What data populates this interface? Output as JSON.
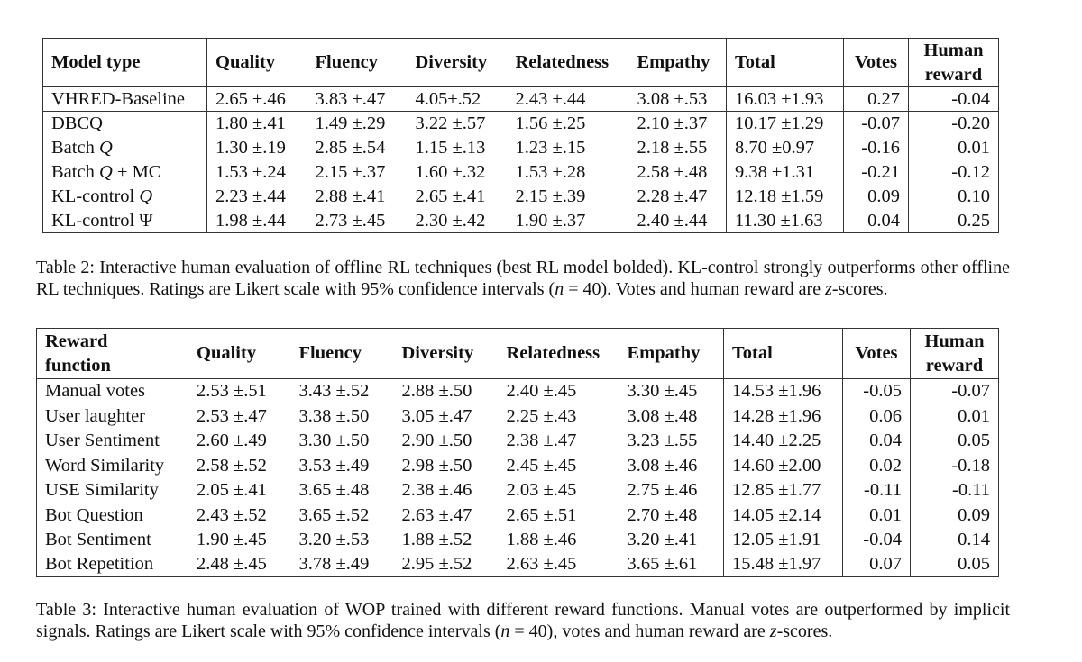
{
  "table2": {
    "headers": [
      "Model type",
      "Quality",
      "Fluency",
      "Diversity",
      "Relatedness",
      "Empathy",
      "Total",
      "Votes",
      "Human reward"
    ],
    "human_reward_lines": [
      "Human",
      "reward"
    ],
    "rows": [
      {
        "model": "VHRED-Baseline",
        "cells": [
          "2.65 ±.46",
          "3.83 ±.47",
          "4.05±.52",
          "2.43 ±.44",
          "3.08 ±.53",
          "16.03 ±1.93",
          "0.27",
          "-0.04"
        ]
      },
      {
        "model": "DBCQ",
        "cells": [
          "1.80 ±.41",
          "1.49 ±.29",
          "3.22 ±.57",
          "1.56 ±.25",
          "2.10 ±.37",
          "10.17 ±1.29",
          "-0.07",
          "-0.20"
        ]
      },
      {
        "model": "Batch Q",
        "cells": [
          "1.30 ±.19",
          "2.85 ±.54",
          "1.15 ±.13",
          "1.23 ±.15",
          "2.18 ±.55",
          "8.70 ±0.97",
          "-0.16",
          "0.01"
        ]
      },
      {
        "model": "Batch Q + MC",
        "cells": [
          "1.53 ±.24",
          "2.15 ±.37",
          "1.60 ±.32",
          "1.53 ±.28",
          "2.58 ±.48",
          "9.38 ±1.31",
          "-0.21",
          "-0.12"
        ]
      },
      {
        "model": "KL-control Q",
        "cells": [
          "2.23 ±.44",
          "2.88 ±.41",
          "2.65 ±.41",
          "2.15 ±.39",
          "2.28 ±.47",
          "12.18 ±1.59",
          "0.09",
          "0.10"
        ]
      },
      {
        "model": "KL-control Ψ",
        "cells": [
          "1.98 ±.44",
          "2.73 ±.45",
          "2.30 ±.42",
          "1.90 ±.37",
          "2.40 ±.44",
          "11.30 ±1.63",
          "0.04",
          "0.25"
        ]
      }
    ],
    "caption_label": "Table 2:",
    "caption_text": "Interactive human evaluation of offline RL techniques (best RL model bolded). KL-control strongly outperforms other offline RL techniques. Ratings are Likert scale with 95% confidence intervals (n = 40). Votes and human reward are z-scores."
  },
  "table3": {
    "headers": [
      "Reward function",
      "Quality",
      "Fluency",
      "Diversity",
      "Relatedness",
      "Empathy",
      "Total",
      "Votes",
      "Human reward"
    ],
    "reward_function_lines": [
      "Reward",
      "function"
    ],
    "human_reward_lines": [
      "Human",
      "reward"
    ],
    "rows": [
      {
        "model": "Manual votes",
        "cells": [
          "2.53 ±.51",
          "3.43 ±.52",
          "2.88 ±.50",
          "2.40 ±.45",
          "3.30 ±.45",
          "14.53 ±1.96",
          "-0.05",
          "-0.07"
        ]
      },
      {
        "model": "User laughter",
        "cells": [
          "2.53 ±.47",
          "3.38 ±.50",
          "3.05 ±.47",
          "2.25 ±.43",
          "3.08 ±.48",
          "14.28 ±1.96",
          "0.06",
          "0.01"
        ]
      },
      {
        "model": "User Sentiment",
        "cells": [
          "2.60 ±.49",
          "3.30 ±.50",
          "2.90 ±.50",
          "2.38 ±.47",
          "3.23 ±.55",
          "14.40 ±2.25",
          "0.04",
          "0.05"
        ]
      },
      {
        "model": "Word Similarity",
        "cells": [
          "2.58 ±.52",
          "3.53 ±.49",
          "2.98 ±.50",
          "2.45 ±.45",
          "3.08 ±.46",
          "14.60 ±2.00",
          "0.02",
          "-0.18"
        ]
      },
      {
        "model": "USE Similarity",
        "cells": [
          "2.05 ±.41",
          "3.65 ±.48",
          "2.38 ±.46",
          "2.03 ±.45",
          "2.75 ±.46",
          "12.85 ±1.77",
          "-0.11",
          "-0.11"
        ]
      },
      {
        "model": "Bot Question",
        "cells": [
          "2.43 ±.52",
          "3.65 ±.52",
          "2.63 ±.47",
          "2.65 ±.51",
          "2.70 ±.48",
          "14.05 ±2.14",
          "0.01",
          "0.09"
        ]
      },
      {
        "model": "Bot Sentiment",
        "cells": [
          "1.90 ±.45",
          "3.20 ±.53",
          "1.88 ±.52",
          "1.88 ±.46",
          "3.20 ±.41",
          "12.05 ±1.91",
          "-0.04",
          "0.14"
        ]
      },
      {
        "model": "Bot Repetition",
        "cells": [
          "2.48 ±.45",
          "3.78 ±.49",
          "2.95 ±.52",
          "2.63 ±.45",
          "3.65 ±.61",
          "15.48 ±1.97",
          "0.07",
          "0.05"
        ]
      }
    ],
    "caption_label": "Table 3:",
    "caption_text": "Interactive human evaluation of WOP trained with different reward functions. Manual votes are outperformed by implicit signals. Ratings are Likert scale with 95% confidence intervals (n = 40), votes and human reward are z-scores."
  }
}
